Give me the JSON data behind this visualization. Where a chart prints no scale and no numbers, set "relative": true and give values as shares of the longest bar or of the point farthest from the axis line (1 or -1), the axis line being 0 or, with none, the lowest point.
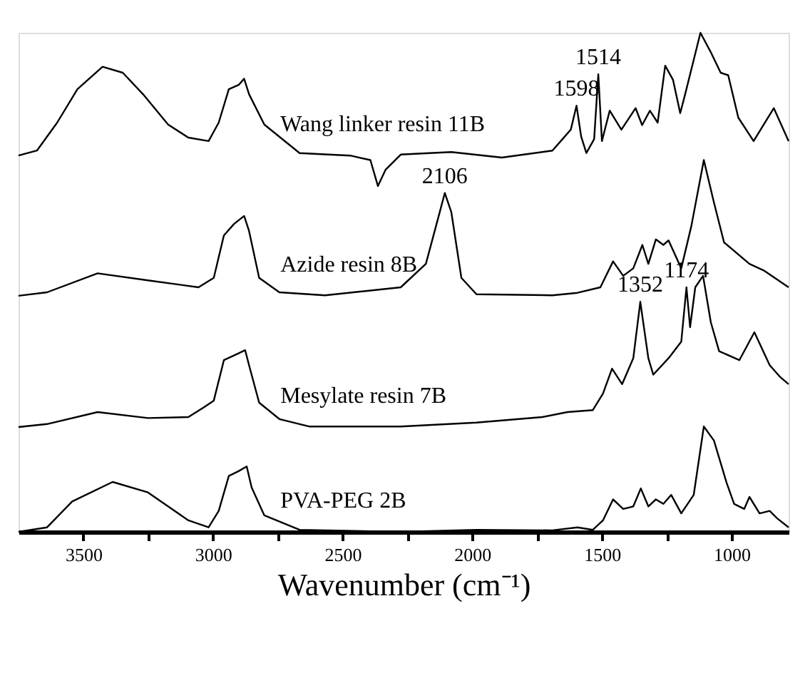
{
  "chart_data": {
    "type": "line",
    "relative": true,
    "xlabel": "Wavenumber (cm⁻¹)",
    "xlim": [
      3750,
      780
    ],
    "xticks": [
      3500,
      {
        "value": 3250,
        "label": null
      },
      3000,
      {
        "value": 2750,
        "label": null
      },
      2500,
      {
        "value": 2250,
        "label": null
      },
      2000,
      {
        "value": 1750,
        "label": null
      },
      1500,
      {
        "value": 1250,
        "label": null
      },
      1000
    ],
    "tick_labels": "x",
    "grid": false,
    "legend": false,
    "marker": "none",
    "line_style": "solid",
    "series": [
      {
        "name": "Wang linker resin 11B",
        "color": "#000000",
        "x": [
          3750,
          3679,
          3601,
          3523,
          3426,
          3348,
          3270,
          3173,
          3095,
          3017,
          2978,
          2939,
          2900,
          2880,
          2861,
          2802,
          2666,
          2471,
          2393,
          2364,
          2334,
          2276,
          2081,
          1886,
          1691,
          1652,
          1620,
          1598,
          1580,
          1560,
          1530,
          1514,
          1500,
          1470,
          1425,
          1370,
          1345,
          1315,
          1285,
          1256,
          1226,
          1198,
          1179,
          1120,
          1081,
          1042,
          1013,
          974,
          915,
          837,
          780
        ],
        "values": [
          0.754,
          0.764,
          0.82,
          0.887,
          0.932,
          0.92,
          0.877,
          0.816,
          0.79,
          0.783,
          0.82,
          0.887,
          0.896,
          0.908,
          0.877,
          0.816,
          0.759,
          0.754,
          0.745,
          0.693,
          0.726,
          0.756,
          0.761,
          0.75,
          0.764,
          0.787,
          0.806,
          0.854,
          0.792,
          0.759,
          0.787,
          0.917,
          0.783,
          0.844,
          0.806,
          0.849,
          0.815,
          0.844,
          0.82,
          0.934,
          0.906,
          0.839,
          0.877,
          1.0,
          0.962,
          0.92,
          0.915,
          0.83,
          0.783,
          0.849,
          0.783
        ]
      },
      {
        "name": "Azide resin 8B",
        "color": "#000000",
        "x": [
          3750,
          3640,
          3445,
          3251,
          3056,
          2997,
          2958,
          2919,
          2880,
          2861,
          2822,
          2744,
          2568,
          2276,
          2179,
          2130,
          2106,
          2081,
          2042,
          1984,
          1691,
          1594,
          1506,
          1457,
          1418,
          1379,
          1344,
          1321,
          1292,
          1263,
          1243,
          1194,
          1155,
          1107,
          1068,
          1029,
          931,
          873,
          780
        ],
        "values": [
          0.473,
          0.48,
          0.518,
          0.504,
          0.49,
          0.509,
          0.594,
          0.617,
          0.633,
          0.603,
          0.509,
          0.48,
          0.474,
          0.49,
          0.537,
          0.632,
          0.679,
          0.641,
          0.509,
          0.476,
          0.474,
          0.479,
          0.49,
          0.542,
          0.513,
          0.528,
          0.575,
          0.537,
          0.586,
          0.575,
          0.584,
          0.528,
          0.613,
          0.745,
          0.66,
          0.58,
          0.537,
          0.523,
          0.49
        ]
      },
      {
        "name": "Mesylate resin 7B",
        "color": "#000000",
        "x": [
          3750,
          3640,
          3445,
          3251,
          3095,
          3037,
          2997,
          2958,
          2900,
          2876,
          2861,
          2822,
          2744,
          2627,
          2276,
          1984,
          1730,
          1633,
          1535,
          1496,
          1461,
          1422,
          1379,
          1352,
          1321,
          1302,
          1243,
          1194,
          1174,
          1160,
          1140,
          1110,
          1080,
          1048,
          970,
          912,
          853,
          814,
          780
        ],
        "values": [
          0.21,
          0.216,
          0.24,
          0.228,
          0.23,
          0.249,
          0.263,
          0.344,
          0.358,
          0.364,
          0.334,
          0.259,
          0.226,
          0.211,
          0.211,
          0.219,
          0.23,
          0.24,
          0.244,
          0.277,
          0.327,
          0.296,
          0.348,
          0.461,
          0.348,
          0.315,
          0.348,
          0.381,
          0.49,
          0.41,
          0.49,
          0.513,
          0.42,
          0.362,
          0.344,
          0.4,
          0.334,
          0.311,
          0.296
        ]
      },
      {
        "name": "PVA-PEG 2B",
        "color": "#000000",
        "x": [
          3750,
          3640,
          3543,
          3387,
          3251,
          3095,
          3017,
          2978,
          2939,
          2900,
          2870,
          2851,
          2802,
          2666,
          2276,
          1984,
          1691,
          1594,
          1535,
          1496,
          1457,
          1418,
          1379,
          1350,
          1321,
          1292,
          1263,
          1233,
          1194,
          1146,
          1107,
          1068,
          1019,
          990,
          951,
          931,
          892,
          853,
          824,
          780
        ],
        "values": [
          0.0,
          0.009,
          0.061,
          0.1,
          0.079,
          0.023,
          0.009,
          0.042,
          0.112,
          0.122,
          0.131,
          0.089,
          0.033,
          0.004,
          0.0,
          0.004,
          0.003,
          0.009,
          0.004,
          0.023,
          0.065,
          0.046,
          0.051,
          0.087,
          0.051,
          0.065,
          0.056,
          0.074,
          0.037,
          0.074,
          0.211,
          0.183,
          0.098,
          0.056,
          0.046,
          0.07,
          0.037,
          0.042,
          0.027,
          0.009
        ]
      }
    ],
    "annotations": [
      {
        "text": "1598",
        "x": 1598,
        "y": 0.854
      },
      {
        "text": "1514",
        "x": 1514,
        "y": 0.917
      },
      {
        "text": "2106",
        "x": 2106,
        "y": 0.679
      },
      {
        "text": "1352",
        "x": 1352,
        "y": 0.461
      },
      {
        "text": "1174",
        "x": 1174,
        "y": 0.49
      }
    ]
  }
}
